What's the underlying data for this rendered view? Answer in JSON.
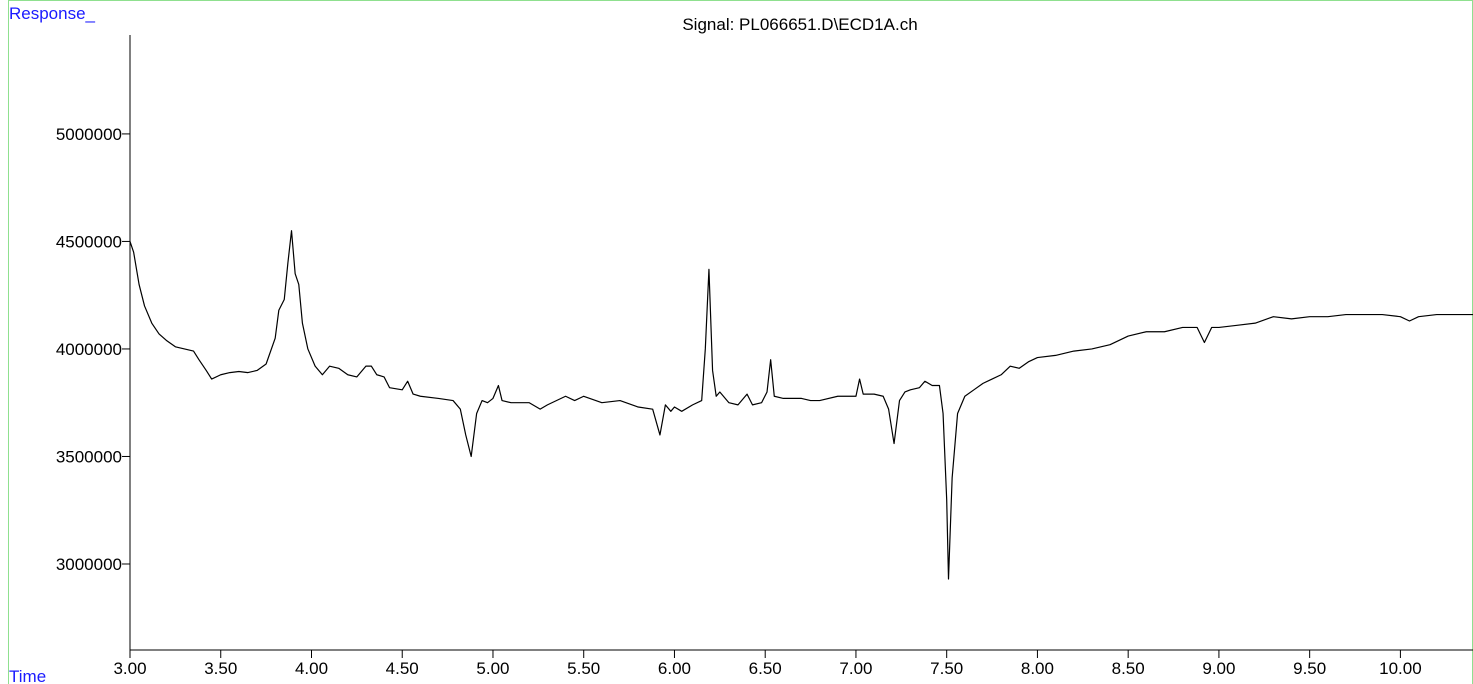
{
  "chart_data": {
    "type": "line",
    "title": "Signal: PL066651.D\\ECD1A.ch",
    "y_label": "Response_",
    "x_label": "Time",
    "color": "#000000",
    "frame_color": "#8fe08f",
    "label_color": "#1a1aff",
    "xlim": [
      3.0,
      10.4
    ],
    "ylim": [
      2600000,
      5460000
    ],
    "xticks": [
      {
        "value": 3.0,
        "label": "3.00"
      },
      {
        "value": 3.5,
        "label": "3.50"
      },
      {
        "value": 4.0,
        "label": "4.00"
      },
      {
        "value": 4.5,
        "label": "4.50"
      },
      {
        "value": 5.0,
        "label": "5.00"
      },
      {
        "value": 5.5,
        "label": "5.50"
      },
      {
        "value": 6.0,
        "label": "6.00"
      },
      {
        "value": 6.5,
        "label": "6.50"
      },
      {
        "value": 7.0,
        "label": "7.00"
      },
      {
        "value": 7.5,
        "label": "7.50"
      },
      {
        "value": 8.0,
        "label": "8.00"
      },
      {
        "value": 8.5,
        "label": "8.50"
      },
      {
        "value": 9.0,
        "label": "9.00"
      },
      {
        "value": 9.5,
        "label": "9.50"
      },
      {
        "value": 10.0,
        "label": "10.00"
      }
    ],
    "yticks": [
      3000000,
      3500000,
      4000000,
      4500000,
      5000000
    ],
    "x": [
      3.0,
      3.02,
      3.05,
      3.08,
      3.12,
      3.16,
      3.2,
      3.25,
      3.3,
      3.35,
      3.38,
      3.42,
      3.45,
      3.5,
      3.55,
      3.6,
      3.65,
      3.7,
      3.75,
      3.8,
      3.82,
      3.85,
      3.87,
      3.89,
      3.91,
      3.93,
      3.95,
      3.98,
      4.02,
      4.06,
      4.1,
      4.15,
      4.2,
      4.25,
      4.3,
      4.33,
      4.36,
      4.4,
      4.43,
      4.5,
      4.53,
      4.56,
      4.6,
      4.7,
      4.78,
      4.82,
      4.85,
      4.88,
      4.91,
      4.94,
      4.97,
      5.0,
      5.03,
      5.05,
      5.1,
      5.2,
      5.26,
      5.3,
      5.4,
      5.45,
      5.5,
      5.6,
      5.7,
      5.8,
      5.88,
      5.92,
      5.95,
      5.98,
      6.0,
      6.04,
      6.1,
      6.15,
      6.17,
      6.19,
      6.21,
      6.23,
      6.25,
      6.3,
      6.35,
      6.4,
      6.43,
      6.48,
      6.51,
      6.53,
      6.55,
      6.6,
      6.7,
      6.75,
      6.8,
      6.9,
      7.0,
      7.02,
      7.04,
      7.1,
      7.15,
      7.18,
      7.21,
      7.24,
      7.27,
      7.3,
      7.35,
      7.38,
      7.42,
      7.46,
      7.48,
      7.5,
      7.51,
      7.53,
      7.56,
      7.6,
      7.65,
      7.7,
      7.75,
      7.8,
      7.85,
      7.9,
      7.95,
      8.0,
      8.1,
      8.2,
      8.3,
      8.4,
      8.5,
      8.6,
      8.7,
      8.8,
      8.88,
      8.92,
      8.96,
      9.0,
      9.1,
      9.2,
      9.3,
      9.4,
      9.5,
      9.6,
      9.7,
      9.8,
      9.9,
      10.0,
      10.05,
      10.1,
      10.2,
      10.3,
      10.4
    ],
    "values": [
      4500000,
      4450000,
      4300000,
      4200000,
      4120000,
      4070000,
      4040000,
      4010000,
      4000000,
      3990000,
      3950000,
      3900000,
      3860000,
      3880000,
      3890000,
      3895000,
      3890000,
      3900000,
      3930000,
      4050000,
      4180000,
      4230000,
      4400000,
      4550000,
      4350000,
      4300000,
      4120000,
      4000000,
      3920000,
      3880000,
      3920000,
      3910000,
      3880000,
      3870000,
      3920000,
      3920000,
      3880000,
      3870000,
      3820000,
      3810000,
      3850000,
      3790000,
      3780000,
      3770000,
      3760000,
      3720000,
      3600000,
      3500000,
      3700000,
      3760000,
      3750000,
      3770000,
      3830000,
      3760000,
      3750000,
      3750000,
      3720000,
      3740000,
      3780000,
      3760000,
      3780000,
      3750000,
      3760000,
      3730000,
      3720000,
      3600000,
      3740000,
      3710000,
      3730000,
      3710000,
      3740000,
      3760000,
      4000000,
      4370000,
      3900000,
      3780000,
      3800000,
      3750000,
      3740000,
      3790000,
      3740000,
      3750000,
      3800000,
      3950000,
      3780000,
      3770000,
      3770000,
      3760000,
      3760000,
      3780000,
      3780000,
      3860000,
      3790000,
      3790000,
      3780000,
      3720000,
      3560000,
      3760000,
      3800000,
      3810000,
      3820000,
      3850000,
      3830000,
      3830000,
      3700000,
      3300000,
      2930000,
      3400000,
      3700000,
      3780000,
      3810000,
      3840000,
      3860000,
      3880000,
      3920000,
      3910000,
      3940000,
      3960000,
      3970000,
      3990000,
      4000000,
      4020000,
      4060000,
      4080000,
      4080000,
      4100000,
      4100000,
      4030000,
      4100000,
      4100000,
      4110000,
      4120000,
      4150000,
      4140000,
      4150000,
      4150000,
      4160000,
      4160000,
      4160000,
      4150000,
      4130000,
      4150000,
      4160000,
      4160000,
      4160000
    ]
  }
}
